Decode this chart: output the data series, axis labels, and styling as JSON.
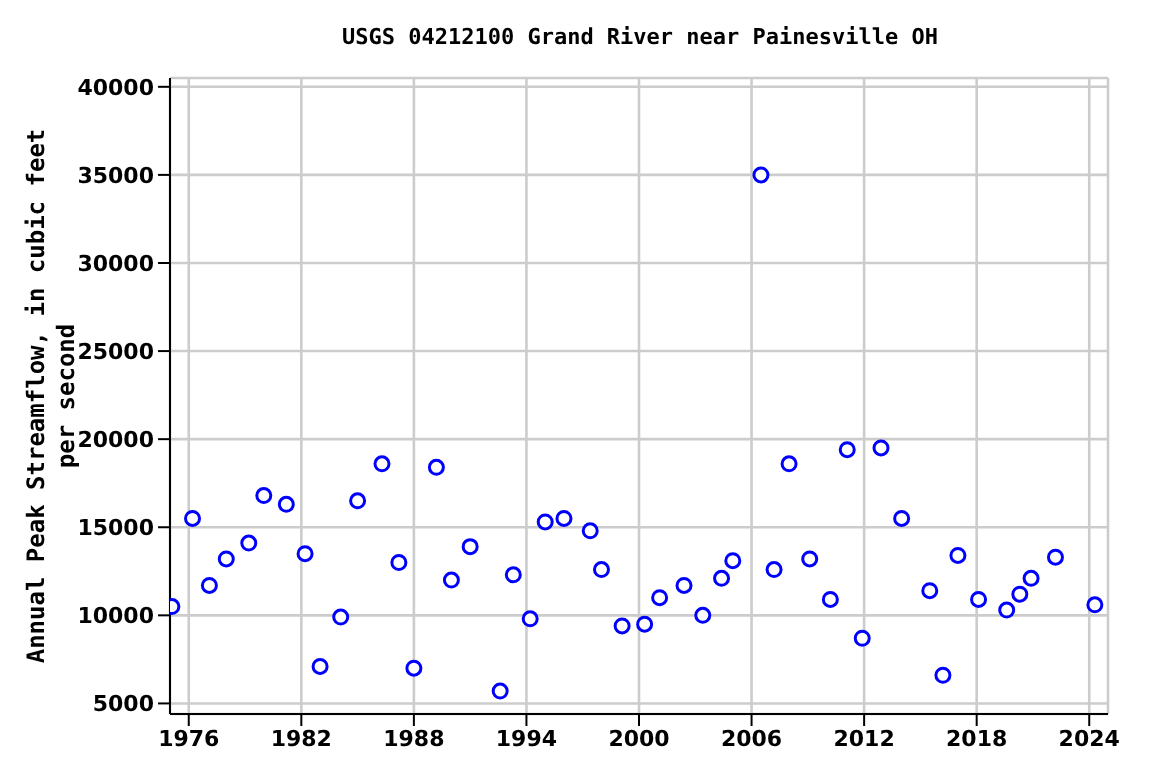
{
  "chart_data": {
    "type": "scatter",
    "title": "USGS 04212100 Grand River near Painesville OH",
    "ylabel": "Annual Peak Streamflow, in cubic feet per second",
    "x": [
      1975.1,
      1976.2,
      1977.1,
      1978.0,
      1979.2,
      1980.0,
      1981.2,
      1982.2,
      1983.0,
      1984.1,
      1985.0,
      1986.3,
      1987.2,
      1988.0,
      1989.2,
      1990.0,
      1991.0,
      1992.6,
      1993.3,
      1994.2,
      1995.0,
      1996.0,
      1997.4,
      1998.0,
      1999.1,
      2000.3,
      2001.1,
      2002.4,
      2003.4,
      2004.4,
      2005.0,
      2006.5,
      2007.2,
      2008.0,
      2009.1,
      2010.2,
      2011.1,
      2011.9,
      2012.9,
      2014.0,
      2015.5,
      2016.2,
      2017.0,
      2018.1,
      2019.6,
      2020.3,
      2020.9,
      2022.2,
      2024.3
    ],
    "series": [
      {
        "color": "#0000ff",
        "values": [
          10500,
          15500,
          11700,
          13200,
          14100,
          16800,
          16300,
          13500,
          7100,
          9900,
          16500,
          18600,
          13000,
          7000,
          18400,
          12000,
          13900,
          5700,
          12300,
          9800,
          15300,
          15500,
          14800,
          12600,
          9400,
          9500,
          11000,
          11700,
          10000,
          12100,
          13100,
          35000,
          12600,
          18600,
          13200,
          10900,
          19400,
          8700,
          19500,
          15500,
          11400,
          6600,
          13400,
          10900,
          10300,
          11200,
          12100,
          13300,
          10600
        ]
      }
    ],
    "xlim": [
      1975,
      2025
    ],
    "xticks": [
      1976,
      1982,
      1988,
      1994,
      2000,
      2006,
      2012,
      2018,
      2024
    ],
    "ylim": [
      4400,
      40500
    ],
    "yticks": [
      5000,
      10000,
      15000,
      20000,
      25000,
      30000,
      35000,
      40000
    ],
    "grid": true,
    "marker": "circle"
  }
}
